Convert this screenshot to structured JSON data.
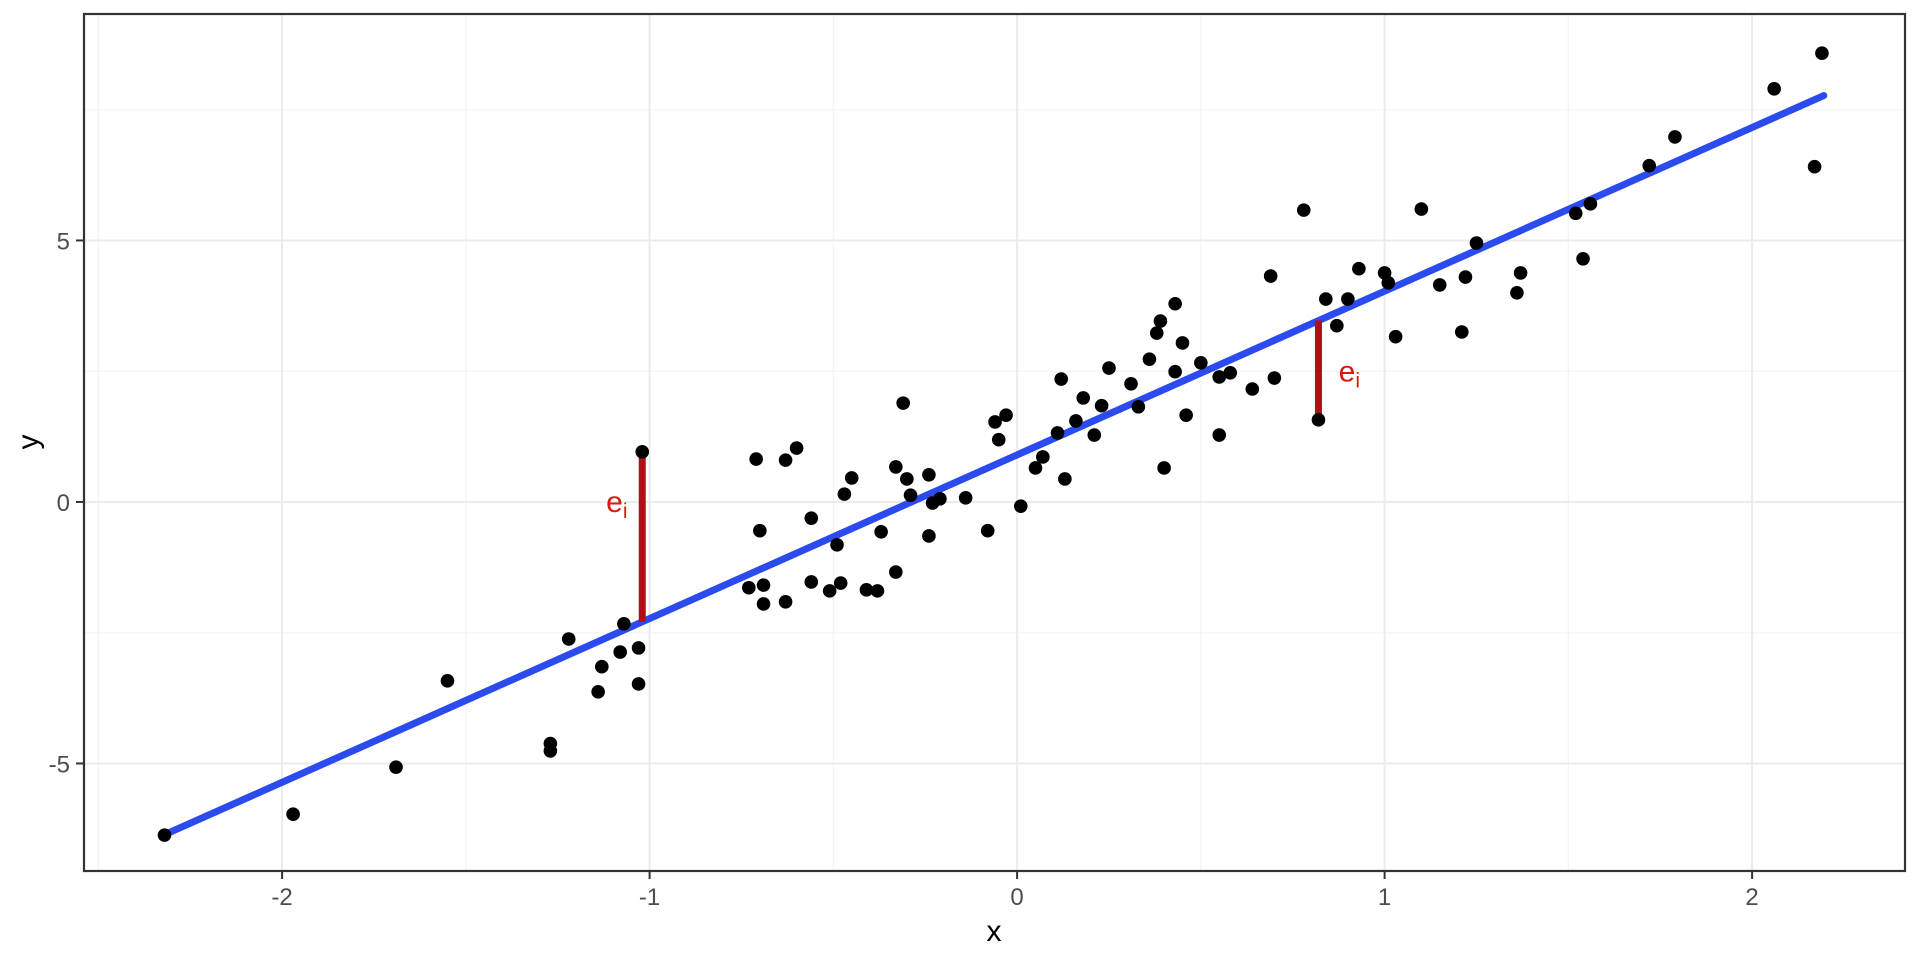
{
  "chart_data": {
    "type": "scatter",
    "title": "",
    "xlabel": "x",
    "ylabel": "y",
    "xlim": [
      -2.539,
      2.416
    ],
    "ylim": [
      -7.056,
      9.33
    ],
    "x_ticks": [
      -2,
      -1,
      0,
      1,
      2
    ],
    "y_ticks": [
      -5,
      0,
      5
    ],
    "x_minor_ticks": [
      -2.5,
      -1.5,
      -0.5,
      0.5,
      1.5
    ],
    "y_minor_ticks": [
      -2.5,
      2.5,
      7.5
    ],
    "grid": true,
    "legend": false,
    "points": [
      [
        -2.32,
        -6.37
      ],
      [
        -1.97,
        -5.97
      ],
      [
        -1.69,
        -5.07
      ],
      [
        -1.55,
        -3.42
      ],
      [
        -1.27,
        -4.62
      ],
      [
        -1.27,
        -4.76
      ],
      [
        -1.22,
        -2.62
      ],
      [
        -1.13,
        -3.15
      ],
      [
        -1.14,
        -3.63
      ],
      [
        -1.08,
        -2.87
      ],
      [
        -1.07,
        -2.33
      ],
      [
        -1.03,
        -2.79
      ],
      [
        -1.03,
        -3.48
      ],
      [
        -1.02,
        0.96
      ],
      [
        -0.73,
        -1.64
      ],
      [
        -0.71,
        0.82
      ],
      [
        -0.7,
        -0.55
      ],
      [
        -0.69,
        -1.59
      ],
      [
        -0.69,
        -1.95
      ],
      [
        -0.63,
        -1.91
      ],
      [
        -0.63,
        0.8
      ],
      [
        -0.6,
        1.03
      ],
      [
        -0.56,
        -1.53
      ],
      [
        -0.56,
        -0.31
      ],
      [
        -0.51,
        -1.7
      ],
      [
        -0.49,
        -0.82
      ],
      [
        -0.48,
        -1.55
      ],
      [
        -0.47,
        0.15
      ],
      [
        -0.45,
        0.46
      ],
      [
        -0.41,
        -1.68
      ],
      [
        -0.38,
        -1.7
      ],
      [
        -0.37,
        -0.57
      ],
      [
        -0.33,
        -1.34
      ],
      [
        -0.33,
        0.67
      ],
      [
        -0.31,
        1.89
      ],
      [
        -0.3,
        0.44
      ],
      [
        -0.29,
        0.13
      ],
      [
        -0.24,
        -0.65
      ],
      [
        -0.24,
        0.52
      ],
      [
        -0.23,
        -0.02
      ],
      [
        -0.21,
        0.06
      ],
      [
        -0.14,
        0.08
      ],
      [
        -0.08,
        -0.55
      ],
      [
        -0.06,
        1.53
      ],
      [
        -0.05,
        1.19
      ],
      [
        -0.03,
        1.66
      ],
      [
        0.01,
        -0.08
      ],
      [
        0.05,
        0.65
      ],
      [
        0.07,
        0.86
      ],
      [
        0.11,
        1.32
      ],
      [
        0.12,
        2.35
      ],
      [
        0.13,
        0.44
      ],
      [
        0.16,
        1.55
      ],
      [
        0.18,
        1.99
      ],
      [
        0.21,
        1.28
      ],
      [
        0.23,
        1.84
      ],
      [
        0.25,
        2.56
      ],
      [
        0.31,
        2.26
      ],
      [
        0.33,
        1.82
      ],
      [
        0.36,
        2.73
      ],
      [
        0.38,
        3.23
      ],
      [
        0.39,
        3.46
      ],
      [
        0.4,
        0.65
      ],
      [
        0.43,
        2.49
      ],
      [
        0.43,
        3.79
      ],
      [
        0.45,
        3.04
      ],
      [
        0.46,
        1.66
      ],
      [
        0.5,
        2.66
      ],
      [
        0.55,
        1.28
      ],
      [
        0.55,
        2.39
      ],
      [
        0.58,
        2.47
      ],
      [
        0.64,
        2.16
      ],
      [
        0.7,
        2.37
      ],
      [
        0.69,
        4.32
      ],
      [
        0.78,
        5.58
      ],
      [
        0.82,
        1.57
      ],
      [
        0.84,
        3.88
      ],
      [
        0.87,
        3.37
      ],
      [
        0.9,
        3.88
      ],
      [
        0.93,
        4.46
      ],
      [
        1.0,
        4.38
      ],
      [
        1.01,
        4.19
      ],
      [
        1.03,
        3.16
      ],
      [
        1.1,
        5.6
      ],
      [
        1.15,
        4.15
      ],
      [
        1.21,
        3.25
      ],
      [
        1.22,
        4.3
      ],
      [
        1.25,
        4.95
      ],
      [
        1.36,
        4.0
      ],
      [
        1.37,
        4.38
      ],
      [
        1.52,
        5.52
      ],
      [
        1.54,
        4.65
      ],
      [
        1.56,
        5.7
      ],
      [
        1.72,
        6.43
      ],
      [
        1.79,
        6.98
      ],
      [
        2.06,
        7.9
      ],
      [
        2.17,
        6.41
      ],
      [
        2.19,
        8.58
      ]
    ],
    "regression_line": {
      "slope": 3.13,
      "intercept": 0.9,
      "x_start": -2.32,
      "x_end": 2.195
    },
    "residuals": [
      {
        "x": -1.02,
        "point_y": 0.96,
        "line_y": -2.29,
        "label_x": -1.06,
        "label_y": 0.0,
        "label_anchor": "end"
      },
      {
        "x": 0.82,
        "point_y": 1.57,
        "line_y": 3.47,
        "label_x": 0.875,
        "label_y": 2.49,
        "label_anchor": "start"
      }
    ],
    "residual_label": {
      "main": "e",
      "sub": "i"
    },
    "colors": {
      "point": "#000000",
      "line": "#2b4bef",
      "residual_segment": "#b01015",
      "residual_label": "#d81a10",
      "grid_major": "#ebebeb",
      "grid_minor": "#f4f4f4",
      "panel_border": "#333333",
      "tick": "#333333",
      "tick_label": "#4d4d4d",
      "axis_title": "#000000",
      "background": "#ffffff"
    }
  }
}
